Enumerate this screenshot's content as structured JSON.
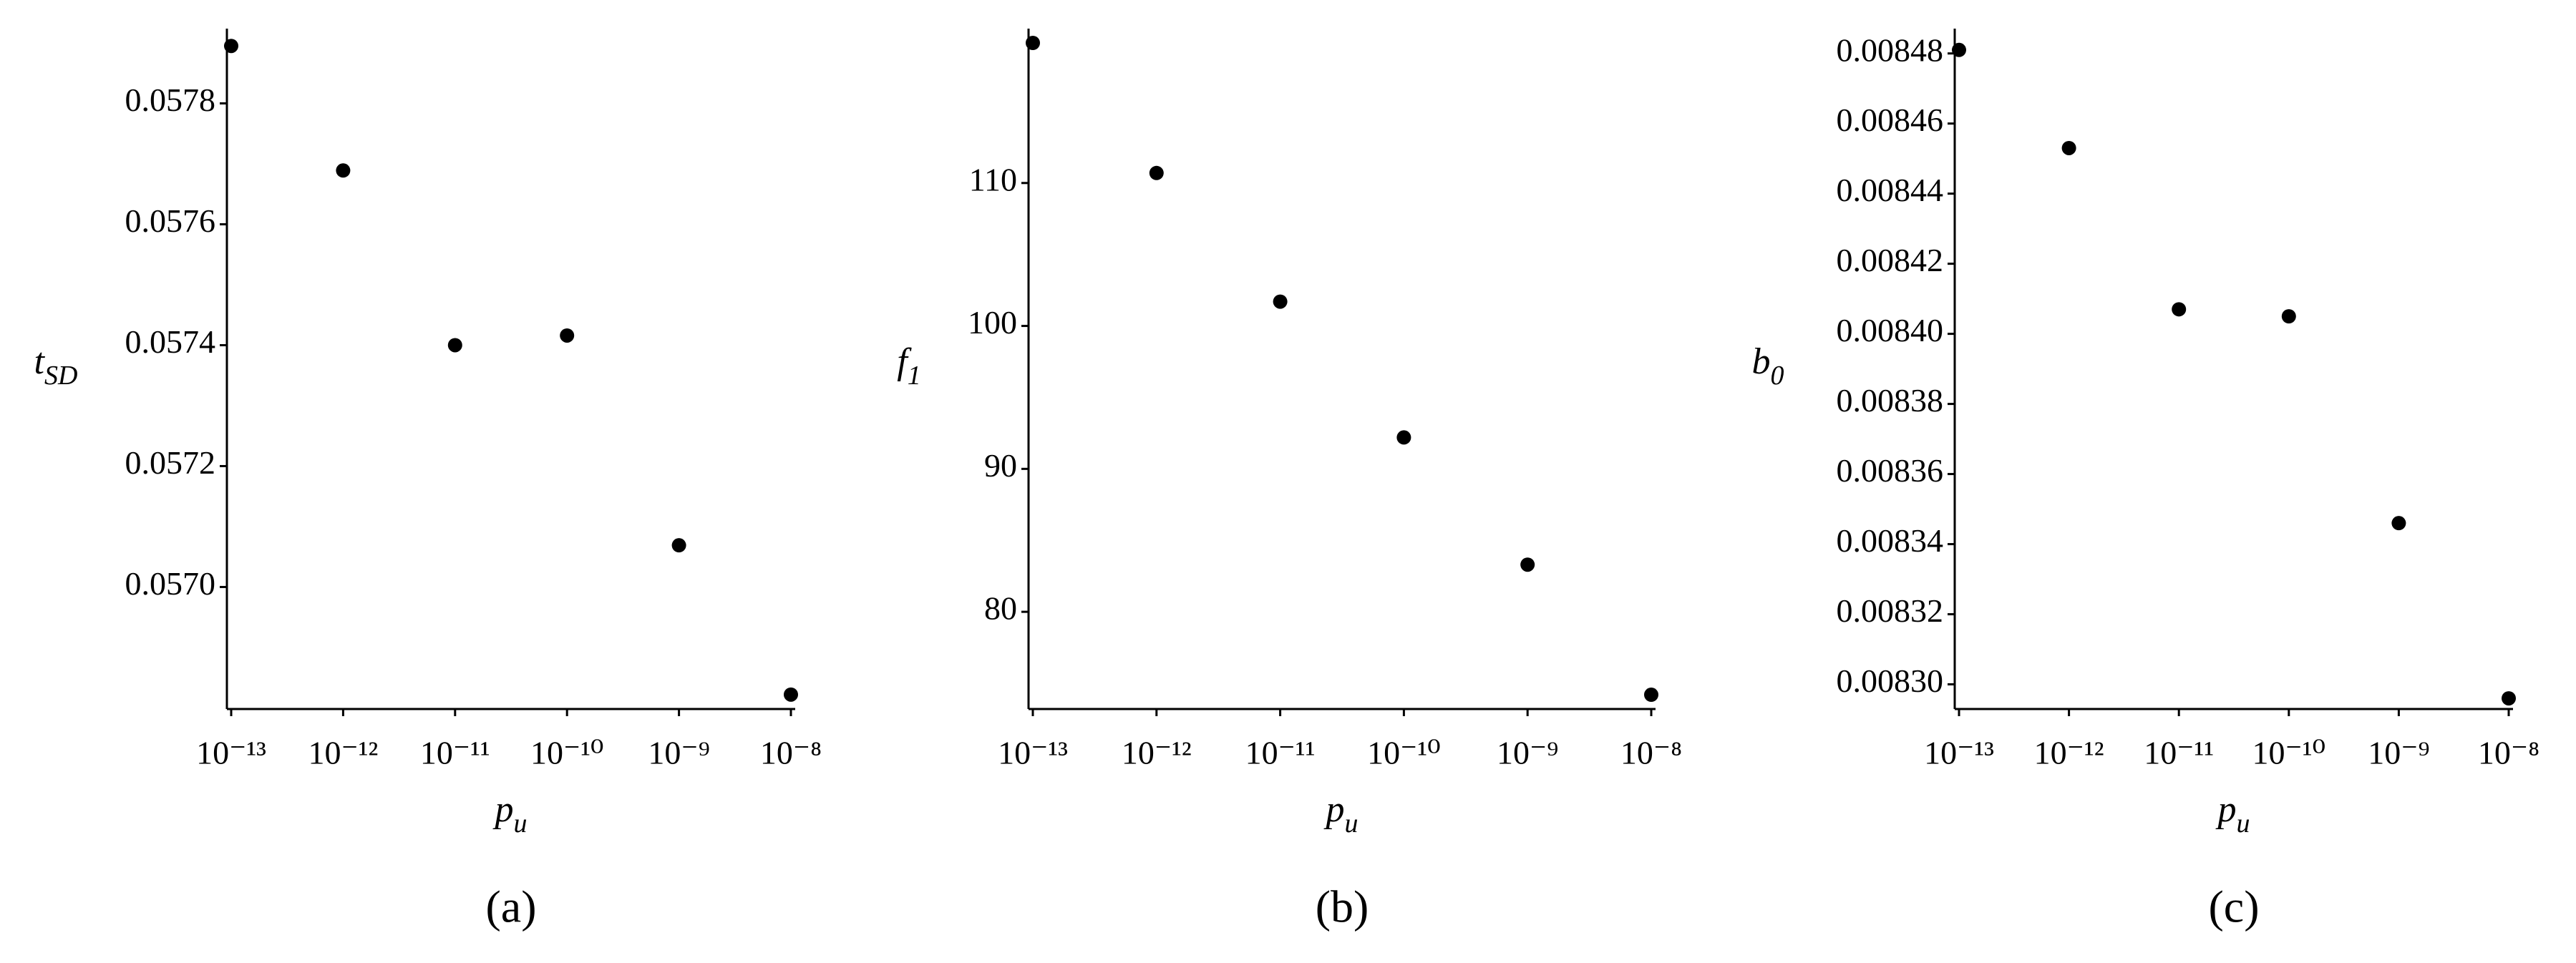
{
  "chart_data": [
    {
      "type": "scatter",
      "caption": "(a)",
      "y_label": "t",
      "y_label_sub": "SD",
      "x_label": "p",
      "x_label_sub": "u",
      "x_log": true,
      "color": "#000000",
      "x": [
        1e-13,
        1e-12,
        1e-11,
        1e-10,
        1e-09,
        1e-08
      ],
      "values": [
        0.057895,
        0.057689,
        0.0574,
        0.057416,
        0.057069,
        0.056822
      ],
      "xlim": [
        1e-13,
        1e-08
      ],
      "ylim": [
        0.05681,
        0.0579
      ],
      "xticks": [
        {
          "value": 1e-13,
          "label": "10⁻¹³"
        },
        {
          "value": 1e-12,
          "label": "10⁻¹²"
        },
        {
          "value": 1e-11,
          "label": "10⁻¹¹"
        },
        {
          "value": 1e-10,
          "label": "10⁻¹⁰"
        },
        {
          "value": 1e-09,
          "label": "10⁻⁹"
        },
        {
          "value": 1e-08,
          "label": "10⁻⁸"
        }
      ],
      "yticks": [
        {
          "value": 0.057,
          "label": "0.0570"
        },
        0.0572,
        0.0574,
        0.0576,
        0.0578
      ]
    },
    {
      "type": "scatter",
      "caption": "(b)",
      "y_label": "f",
      "y_label_sub": "1",
      "x_label": "p",
      "x_label_sub": "u",
      "x_log": true,
      "color": "#000000",
      "x": [
        1e-13,
        1e-12,
        1e-11,
        1e-10,
        1e-09,
        1e-08
      ],
      "values": [
        119.8,
        110.7,
        101.7,
        92.2,
        83.3,
        74.2
      ],
      "xlim": [
        1e-13,
        1e-08
      ],
      "ylim": [
        73.7,
        119.8
      ],
      "xticks": [
        {
          "value": 1e-13,
          "label": "10⁻¹³"
        },
        {
          "value": 1e-12,
          "label": "10⁻¹²"
        },
        {
          "value": 1e-11,
          "label": "10⁻¹¹"
        },
        {
          "value": 1e-10,
          "label": "10⁻¹⁰"
        },
        {
          "value": 1e-09,
          "label": "10⁻⁹"
        },
        {
          "value": 1e-08,
          "label": "10⁻⁸"
        }
      ],
      "yticks": [
        80,
        90,
        100,
        110
      ]
    },
    {
      "type": "scatter",
      "caption": "(c)",
      "y_label": "b",
      "y_label_sub": "0",
      "x_label": "p",
      "x_label_sub": "u",
      "x_log": true,
      "color": "#000000",
      "x": [
        1e-13,
        1e-12,
        1e-11,
        1e-10,
        1e-09,
        1e-08
      ],
      "values": [
        0.008481,
        0.008453,
        0.008407,
        0.008405,
        0.008346,
        0.008296
      ],
      "xlim": [
        1e-13,
        1e-08
      ],
      "ylim": [
        0.008295,
        0.008483
      ],
      "xticks": [
        {
          "value": 1e-13,
          "label": "10⁻¹³"
        },
        {
          "value": 1e-12,
          "label": "10⁻¹²"
        },
        {
          "value": 1e-11,
          "label": "10⁻¹¹"
        },
        {
          "value": 1e-10,
          "label": "10⁻¹⁰"
        },
        {
          "value": 1e-09,
          "label": "10⁻⁹"
        },
        {
          "value": 1e-08,
          "label": "10⁻⁸"
        }
      ],
      "yticks": [
        {
          "value": 0.0083,
          "label": "0.00830"
        },
        0.00832,
        0.00834,
        0.00836,
        0.00838,
        {
          "value": 0.0084,
          "label": "0.00840"
        },
        0.00842,
        0.00844,
        0.00846,
        0.00848
      ]
    }
  ]
}
